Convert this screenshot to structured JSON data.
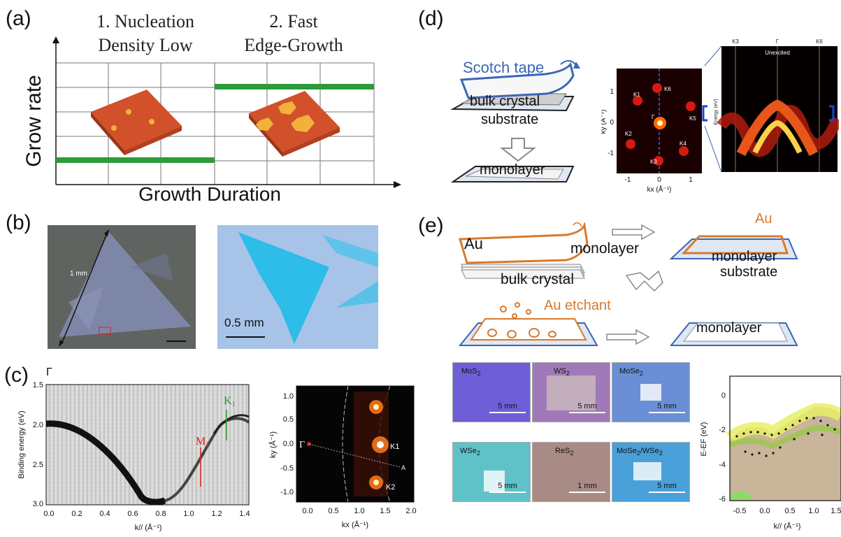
{
  "panels": {
    "a": {
      "label": "(a)"
    },
    "b": {
      "label": "(b)"
    },
    "c": {
      "label": "(c)"
    },
    "d": {
      "label": "(d)"
    },
    "e": {
      "label": "(e)"
    }
  },
  "panel_a": {
    "stage1_line1": "1. Nucleation",
    "stage1_line2": "Density Low",
    "stage2_line1": "2. Fast",
    "stage2_line2": "Edge-Growth",
    "ylabel": "Grow rate",
    "xlabel": "Growth Duration",
    "colors": {
      "bar": "#2e9a3a",
      "plate": "#d2502a",
      "dot": "#f0b23a"
    }
  },
  "panel_b": {
    "scale_left": "1 mm",
    "scale_right": "0.5 mm"
  },
  "panel_c": {
    "gamma_label": "Γ",
    "k1_label": "K",
    "k1_sub": "1",
    "m1_label": "M",
    "m1_sub": "1",
    "left_ylabel": "Binding energy (eV)",
    "left_xlabel": "k// (Å⁻¹)",
    "left_yticks": [
      "1.5",
      "2.0",
      "2.5",
      "3.0"
    ],
    "left_xticks": [
      "0.0",
      "0.2",
      "0.4",
      "0.6",
      "0.8",
      "1.0",
      "1.2",
      "1.4"
    ],
    "right_ylabel": "ky (Å⁻¹)",
    "right_xlabel": "kx (Å⁻¹)",
    "right_yticks": [
      "1.0",
      "0.5",
      "0.0",
      "-0.5",
      "-1.0"
    ],
    "right_xticks": [
      "0.0",
      "0.5",
      "1.0",
      "1.5",
      "2.0"
    ],
    "right_gamma": "Γ",
    "right_k1": "K1",
    "right_k2": "K2",
    "right_a": "A"
  },
  "panel_d": {
    "scotch_tape": "Scotch tape",
    "bulk_crystal": "bulk crystal",
    "substrate": "substrate",
    "monolayer": "monolayer",
    "bz_labels": [
      "K1",
      "K6",
      "Γ",
      "K5",
      "K2",
      "K4",
      "K3"
    ],
    "bz_ylabel": "ky (Å⁻¹)",
    "bz_xlabel": "kx (Å⁻¹)",
    "bz_yticks": [
      "1",
      "0",
      "-1"
    ],
    "bz_xticks": [
      "-1",
      "0",
      "1"
    ],
    "band_top_labels": [
      "K3",
      "Γ",
      "K6"
    ],
    "band_title": "Unexcited",
    "band_ylabel": "Energy (eV)"
  },
  "panel_e": {
    "au_1": "Au",
    "monolayer_1": "monolayer",
    "bulk_crystal": "bulk crystal",
    "au_2": "Au",
    "monolayer_2": "monolayer",
    "substrate": "substrate",
    "au_etchant": "Au etchant",
    "monolayer_3": "monolayer",
    "samples": [
      {
        "name": "MoS",
        "sub": "2",
        "scale": "5 mm",
        "color": "#6e5fd8"
      },
      {
        "name": "WS",
        "sub": "2",
        "scale": "5 mm",
        "color": "#a07ab8"
      },
      {
        "name": "MoSe",
        "sub": "2",
        "scale": "5 mm",
        "color": "#6a8fd6"
      },
      {
        "name": "WSe",
        "sub": "2",
        "scale": "5 mm",
        "color": "#5fc2c9"
      },
      {
        "name": "ReS",
        "sub": "2",
        "scale": "1 mm",
        "color": "#a88b85"
      },
      {
        "name": "MoSe",
        "sub": "2",
        "name2": "/WSe",
        "sub2": "2",
        "scale": "5 mm",
        "color": "#4aa0d8"
      }
    ],
    "arpes_ylabel": "E-EF (eV)",
    "arpes_xlabel": "k// (Å⁻¹)",
    "arpes_yticks": [
      "0",
      "-2",
      "-4",
      "-6"
    ],
    "arpes_xticks": [
      "-0.5",
      "0.0",
      "0.5",
      "1.0",
      "1.5"
    ]
  }
}
